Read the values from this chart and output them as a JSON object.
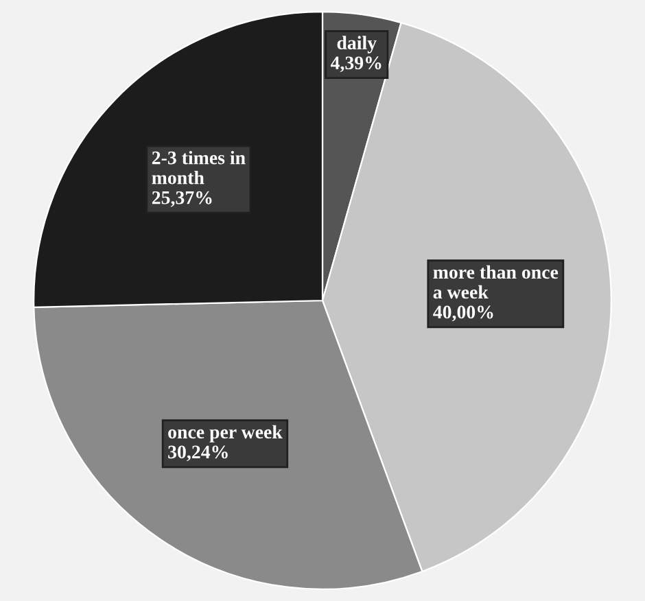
{
  "chart_data": {
    "type": "pie",
    "categories": [
      "daily",
      "more than once a week",
      "once per week",
      "2-3 times in month"
    ],
    "values": [
      4.39,
      40.0,
      30.24,
      25.37
    ],
    "colors": [
      "#555555",
      "#c6c6c6",
      "#8a8a8a",
      "#1c1c1c"
    ],
    "value_labels": [
      "4,39%",
      "40,00%",
      "30,24%",
      "25,37%"
    ],
    "legend": false
  }
}
